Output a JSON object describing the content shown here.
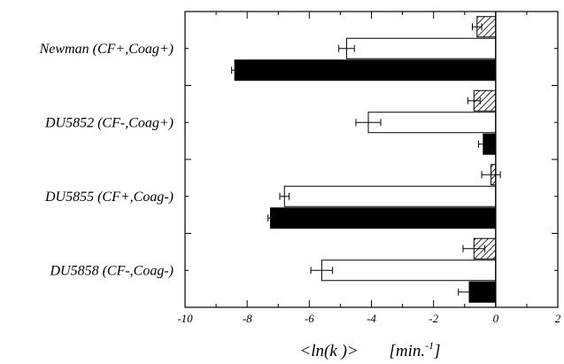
{
  "chart_data": {
    "type": "bar",
    "orientation": "horizontal",
    "categories": [
      "Newman (CF+,Coag+)",
      "DU5852 (CF-,Coag+)",
      "DU5855 (CF+,Coag-)",
      "DU5858 (CF-,Coag-)"
    ],
    "series": [
      {
        "style": "hatched",
        "fill": "#ffffff",
        "values": [
          -0.6,
          -0.7,
          -0.15,
          -0.7
        ],
        "errors": [
          0.15,
          0.2,
          0.3,
          0.35
        ]
      },
      {
        "style": "open",
        "fill": "#ffffff",
        "values": [
          -4.8,
          -4.1,
          -6.8,
          -5.6
        ],
        "errors": [
          0.25,
          0.4,
          0.15,
          0.35
        ]
      },
      {
        "style": "solid",
        "fill": "#000000",
        "values": [
          -8.4,
          -0.4,
          -7.25,
          -0.85
        ],
        "errors": [
          0.1,
          0.15,
          0.08,
          0.35
        ]
      }
    ],
    "xlim": [
      -10,
      2
    ],
    "xticks": [
      "-10",
      "-8",
      "-6",
      "-4",
      "-2",
      "0",
      "2"
    ],
    "xtick_values": [
      -10,
      -8,
      -6,
      -4,
      -2,
      0,
      2
    ],
    "xlabel": {
      "main": "<ln(k )>",
      "units_prefix": "[min.",
      "units_sup": "-1",
      "units_suffix": "]"
    },
    "grid": false
  }
}
